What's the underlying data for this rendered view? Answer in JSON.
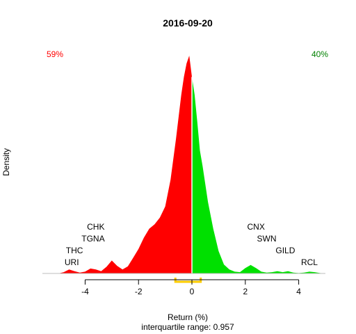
{
  "chart_data": {
    "type": "area",
    "title": "2016-09-20",
    "xlabel": "Return (%)",
    "ylabel": "Density",
    "subtitle": "interquartile range: 0.957",
    "xlim": [
      -5.6,
      5.0
    ],
    "ylim": [
      0,
      1.0
    ],
    "x_ticks": [
      -4,
      -2,
      0,
      2,
      4
    ],
    "split_x": 0,
    "negative_pct": "59%",
    "positive_pct": "40%",
    "colors": {
      "negative": "#ff0000",
      "positive": "#00e000",
      "iqr": "#ffcc00",
      "baseline": "#bebebe",
      "neg_text": "#ff0000",
      "pos_text": "#008000"
    },
    "iqr_range": [
      -0.62,
      0.33
    ],
    "density": {
      "x": [
        -5.0,
        -4.8,
        -4.6,
        -4.4,
        -4.2,
        -4.0,
        -3.8,
        -3.6,
        -3.4,
        -3.2,
        -3.0,
        -2.8,
        -2.6,
        -2.4,
        -2.2,
        -2.0,
        -1.8,
        -1.6,
        -1.4,
        -1.2,
        -1.0,
        -0.8,
        -0.6,
        -0.4,
        -0.3,
        -0.2,
        -0.1,
        0.0,
        0.1,
        0.2,
        0.3,
        0.4,
        0.6,
        0.8,
        1.0,
        1.2,
        1.4,
        1.6,
        1.8,
        2.0,
        2.2,
        2.4,
        2.6,
        2.8,
        3.0,
        3.2,
        3.4,
        3.6,
        3.8,
        4.0,
        4.2,
        4.4,
        4.6,
        4.8,
        5.0
      ],
      "y": [
        0.0,
        0.006,
        0.018,
        0.01,
        0.004,
        0.008,
        0.022,
        0.018,
        0.01,
        0.03,
        0.058,
        0.034,
        0.018,
        0.032,
        0.07,
        0.11,
        0.16,
        0.2,
        0.22,
        0.25,
        0.3,
        0.42,
        0.6,
        0.8,
        0.88,
        0.94,
        0.975,
        0.88,
        0.8,
        0.68,
        0.55,
        0.48,
        0.32,
        0.2,
        0.1,
        0.04,
        0.018,
        0.008,
        0.006,
        0.024,
        0.038,
        0.024,
        0.008,
        0.004,
        0.006,
        0.01,
        0.006,
        0.01,
        0.004,
        0.002,
        0.004,
        0.008,
        0.006,
        0.002,
        0.0
      ]
    },
    "tickers_left": [
      {
        "label": "CHK",
        "x": -3.6,
        "row": 4
      },
      {
        "label": "TGNA",
        "x": -3.7,
        "row": 3
      },
      {
        "label": "THC",
        "x": -4.4,
        "row": 2
      },
      {
        "label": "URI",
        "x": -4.5,
        "row": 1
      }
    ],
    "tickers_right": [
      {
        "label": "CNX",
        "x": 2.4,
        "row": 4
      },
      {
        "label": "SWN",
        "x": 2.8,
        "row": 3
      },
      {
        "label": "GILD",
        "x": 3.5,
        "row": 2
      },
      {
        "label": "RCL",
        "x": 4.4,
        "row": 1
      }
    ]
  }
}
